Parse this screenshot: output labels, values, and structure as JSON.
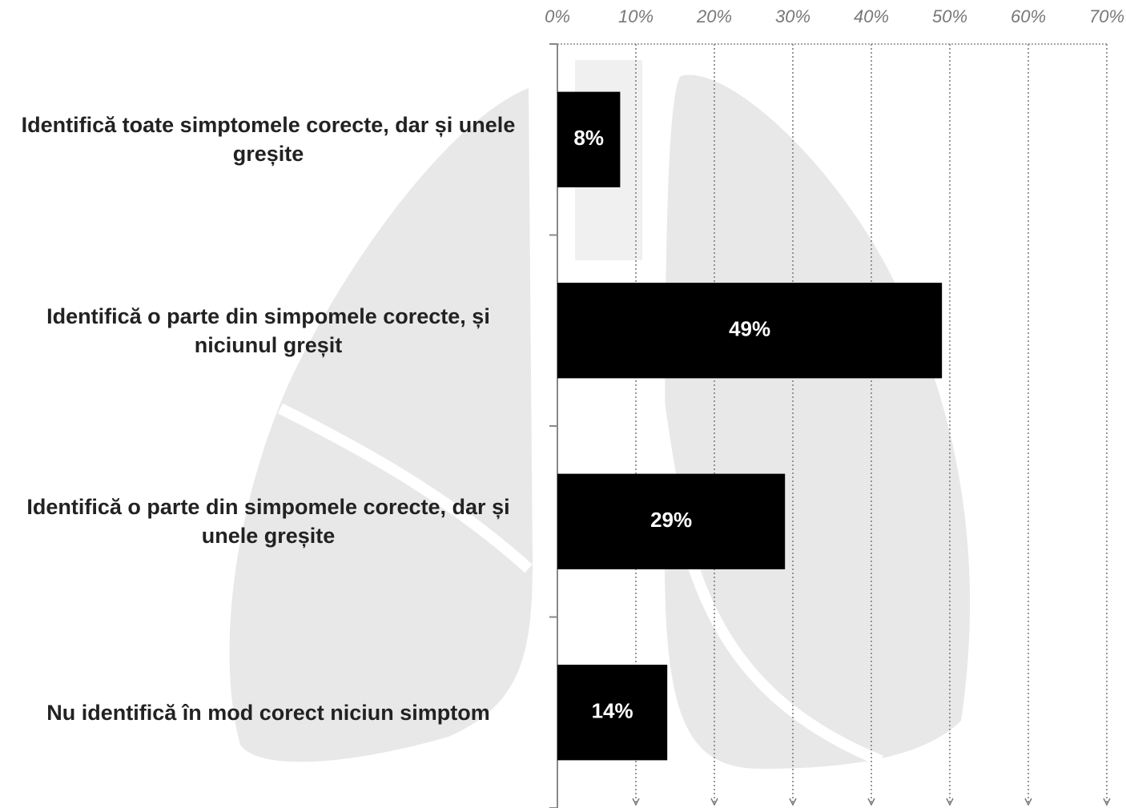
{
  "chart_data": {
    "type": "bar",
    "orientation": "horizontal",
    "categories": [
      "Identifică toate simptomele corecte, dar și unele greșite",
      "Identifică o parte din simpomele corecte, și niciunul greșit",
      "Identifică o parte din simpomele corecte, dar și unele greșite",
      "Nu identifică în mod corect niciun simptom"
    ],
    "values": [
      8,
      49,
      29,
      14
    ],
    "value_labels": [
      "8%",
      "49%",
      "29%",
      "14%"
    ],
    "color": "#000000",
    "xlim": [
      0,
      70
    ],
    "xticks": [
      {
        "value": 0,
        "label": "0%"
      },
      {
        "value": 10,
        "label": "10%"
      },
      {
        "value": 20,
        "label": "20%"
      },
      {
        "value": 30,
        "label": "30%"
      },
      {
        "value": 40,
        "label": "40%"
      },
      {
        "value": 50,
        "label": "50%"
      },
      {
        "value": 60,
        "label": "60%"
      },
      {
        "value": 70,
        "label": "70%"
      }
    ],
    "grid": true
  }
}
